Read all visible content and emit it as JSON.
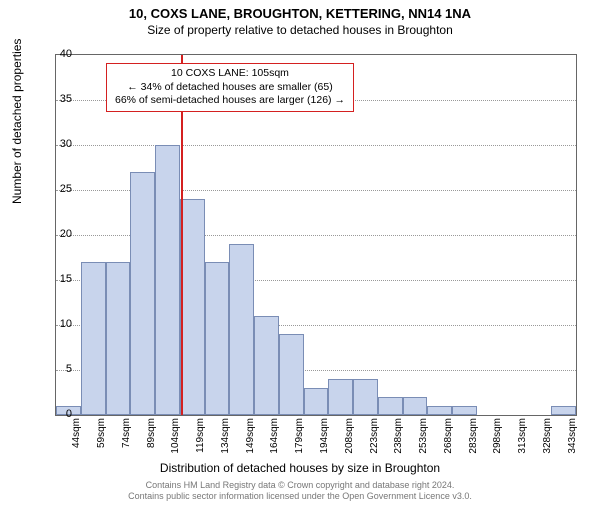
{
  "title": "10, COXS LANE, BROUGHTON, KETTERING, NN14 1NA",
  "subtitle": "Size of property relative to detached houses in Broughton",
  "yaxis_label": "Number of detached properties",
  "xaxis_label": "Distribution of detached houses by size in Broughton",
  "footer_line1": "Contains HM Land Registry data © Crown copyright and database right 2024.",
  "footer_line2": "Contains public sector information licensed under the Open Government Licence v3.0.",
  "chart": {
    "type": "histogram",
    "ylim": [
      0,
      40
    ],
    "ytick_step": 5,
    "background_color": "#ffffff",
    "grid_color": "#999999",
    "bar_fill": "#c8d4ec",
    "bar_border": "#7a8db5",
    "marker_color": "#d42020",
    "marker_x_value": 105,
    "categories": [
      "44sqm",
      "59sqm",
      "74sqm",
      "89sqm",
      "104sqm",
      "119sqm",
      "134sqm",
      "149sqm",
      "164sqm",
      "179sqm",
      "194sqm",
      "208sqm",
      "223sqm",
      "238sqm",
      "253sqm",
      "268sqm",
      "283sqm",
      "298sqm",
      "313sqm",
      "328sqm",
      "343sqm"
    ],
    "values": [
      1,
      17,
      17,
      27,
      30,
      24,
      17,
      19,
      11,
      9,
      3,
      4,
      4,
      2,
      2,
      1,
      1,
      0,
      0,
      0,
      1
    ],
    "bar_width_ratio": 1.0,
    "title_fontsize": 13,
    "label_fontsize": 12,
    "tick_fontsize": 10
  },
  "callout": {
    "line1": "10 COXS LANE: 105sqm",
    "line2": "← 34% of detached houses are smaller (65)",
    "line3": "66% of semi-detached houses are larger (126) →"
  }
}
